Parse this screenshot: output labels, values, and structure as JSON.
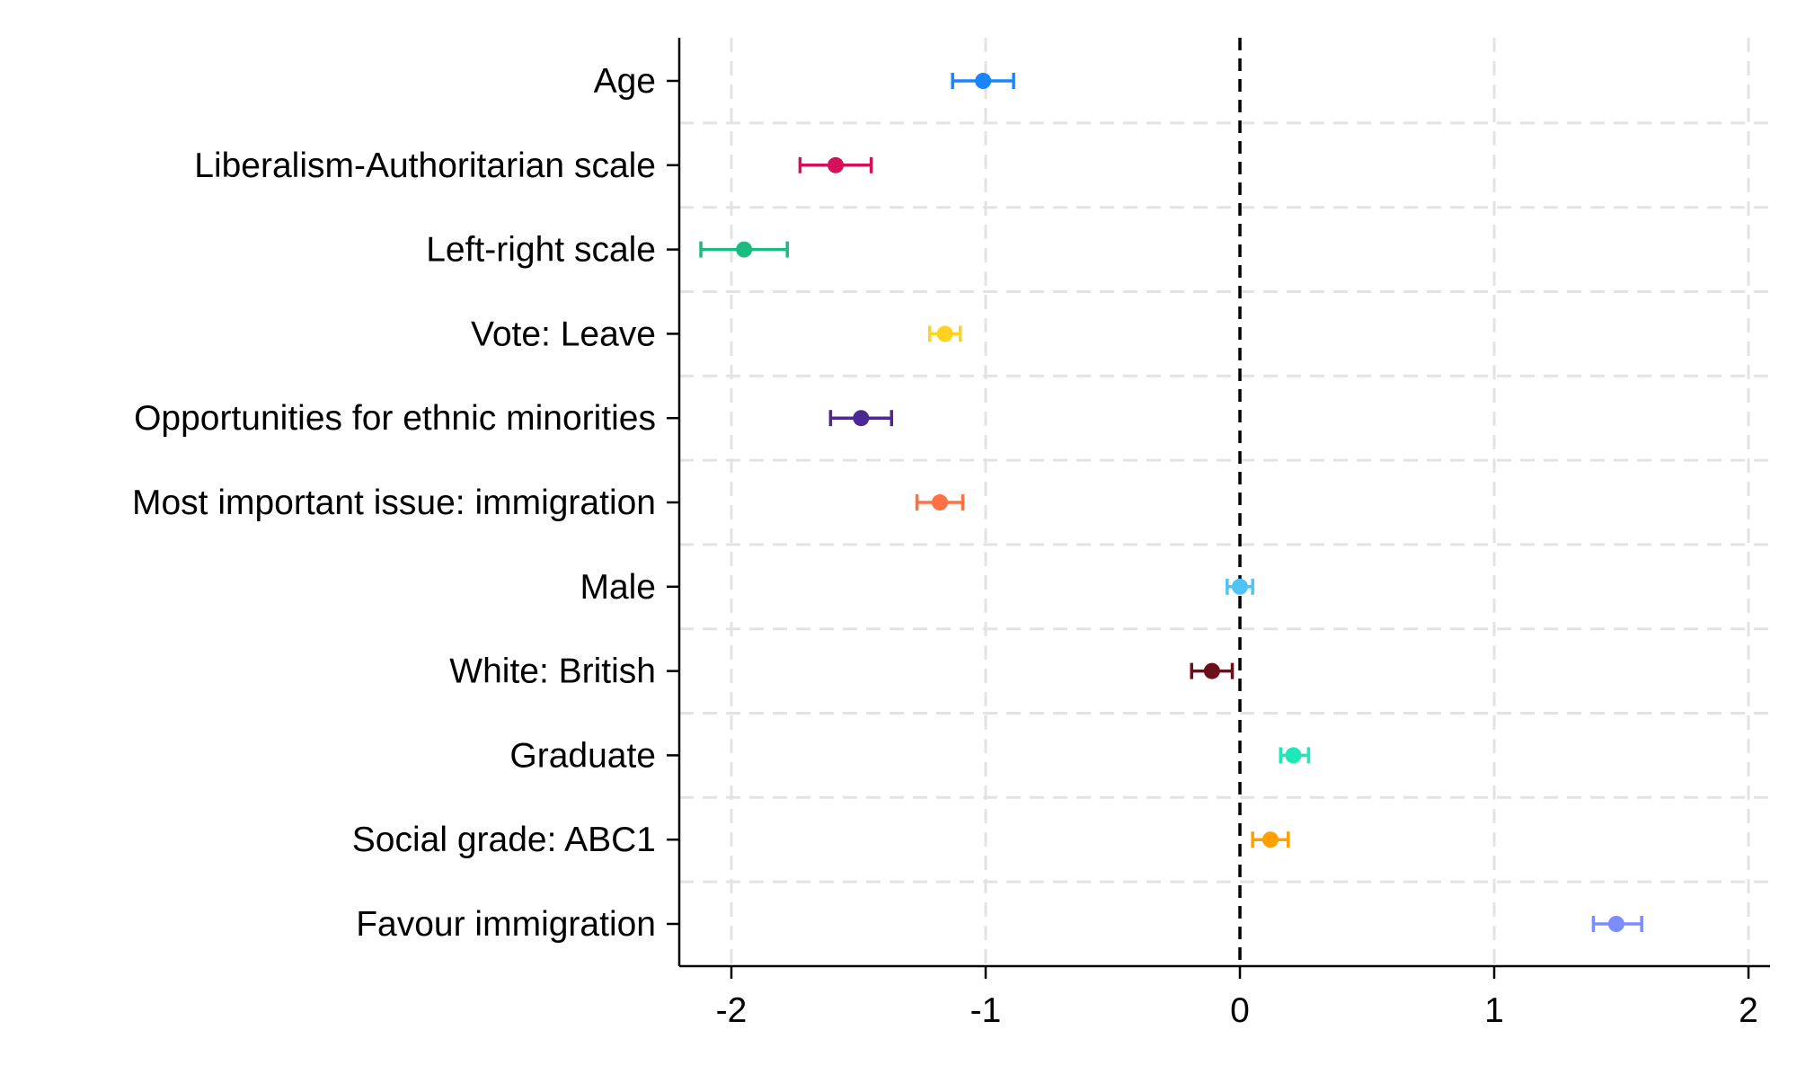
{
  "chart_data": {
    "type": "scatter",
    "subtype": "coefficient-plot",
    "title": "",
    "xlabel": "",
    "ylabel": "",
    "xlim": [
      -2.2,
      2.1
    ],
    "xticks": [
      -2,
      -1,
      0,
      1,
      2
    ],
    "xtick_labels": [
      "-2",
      "-1",
      "0",
      "1",
      "2"
    ],
    "reference_line": {
      "x": 0,
      "style": "dashed",
      "color": "#000000"
    },
    "grid": {
      "vertical": true,
      "horizontal_between_rows": true,
      "style": "dashed",
      "color": "#e3e3e3"
    },
    "legend": "none",
    "categories": [
      "Age",
      "Liberalism-Authoritarian scale",
      "Left-right scale",
      "Vote: Leave",
      "Opportunities for ethnic minorities",
      "Most important issue: immigration",
      "Male",
      "White: British",
      "Graduate",
      "Social grade: ABC1",
      "Favour immigration"
    ],
    "estimates": [
      -1.01,
      -1.59,
      -1.95,
      -1.16,
      -1.49,
      -1.18,
      0.0,
      -0.11,
      0.21,
      0.12,
      1.48
    ],
    "ci_low": [
      -1.13,
      -1.73,
      -2.12,
      -1.22,
      -1.61,
      -1.27,
      -0.05,
      -0.19,
      0.16,
      0.05,
      1.39
    ],
    "ci_high": [
      -0.89,
      -1.45,
      -1.78,
      -1.1,
      -1.37,
      -1.09,
      0.05,
      -0.03,
      0.27,
      0.19,
      1.58
    ],
    "colors": [
      "#1a85ff",
      "#d41159",
      "#1bbc7f",
      "#ffd21f",
      "#4b2991",
      "#ff7043",
      "#4fc3f7",
      "#6b0f1a",
      "#1de9b6",
      "#ffa000",
      "#7b8cff"
    ]
  }
}
